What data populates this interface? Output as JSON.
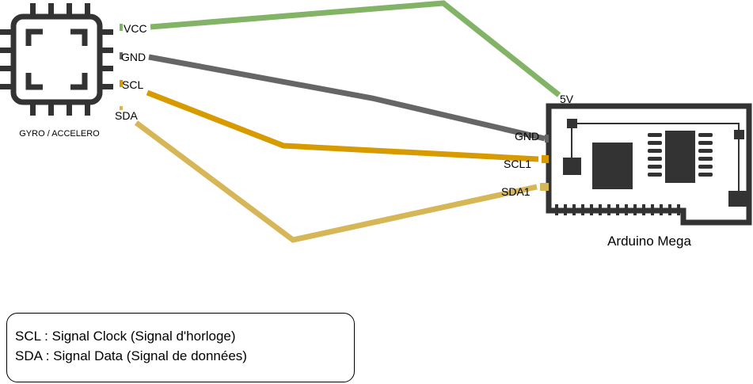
{
  "sensor": {
    "caption": "GYRO / ACCELERO",
    "pins": {
      "vcc": "VCC",
      "gnd": "GND",
      "scl": "SCL",
      "sda": "SDA"
    }
  },
  "board": {
    "caption": "Arduino Mega",
    "pins": {
      "v5": "5V",
      "gnd": "GND",
      "scl": "SCL1",
      "sda": "SDA1"
    }
  },
  "wires": {
    "vcc_color": "#82b366",
    "gnd_color": "#666666",
    "scl_color": "#d79b00",
    "sda_color": "#d6b656"
  },
  "legend": {
    "line1": "SCL : Signal Clock (Signal d'horloge)",
    "line2": "SDA : Signal Data (Signal de données)"
  }
}
